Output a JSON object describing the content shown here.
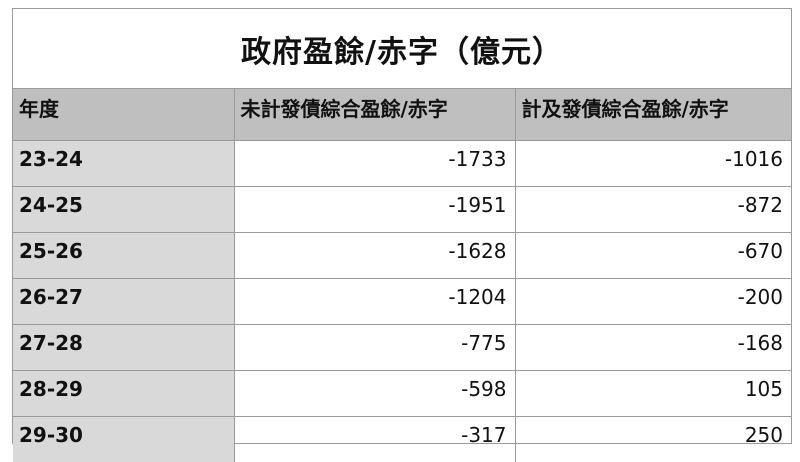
{
  "chart_data": {
    "type": "table",
    "title": "政府盈餘/赤字（億元）",
    "columns": [
      "年度",
      "未計發債綜合盈餘/赤字",
      "計及發債綜合盈餘/赤字"
    ],
    "rows": [
      {
        "year": "23-24",
        "excl_bonds": "-1733",
        "incl_bonds": "-1016"
      },
      {
        "year": "24-25",
        "excl_bonds": "-1951",
        "incl_bonds": "-872"
      },
      {
        "year": "25-26",
        "excl_bonds": "-1628",
        "incl_bonds": "-670"
      },
      {
        "year": "26-27",
        "excl_bonds": "-1204",
        "incl_bonds": "-200"
      },
      {
        "year": "27-28",
        "excl_bonds": "-775",
        "incl_bonds": "-168"
      },
      {
        "year": "28-29",
        "excl_bonds": "-598",
        "incl_bonds": "105"
      },
      {
        "year": "29-30",
        "excl_bonds": "-317",
        "incl_bonds": "250"
      }
    ]
  },
  "colors": {
    "header_bg": "#bfbfbf",
    "year_cell_bg": "#d9d9d9",
    "border": "#9a9a9a"
  }
}
